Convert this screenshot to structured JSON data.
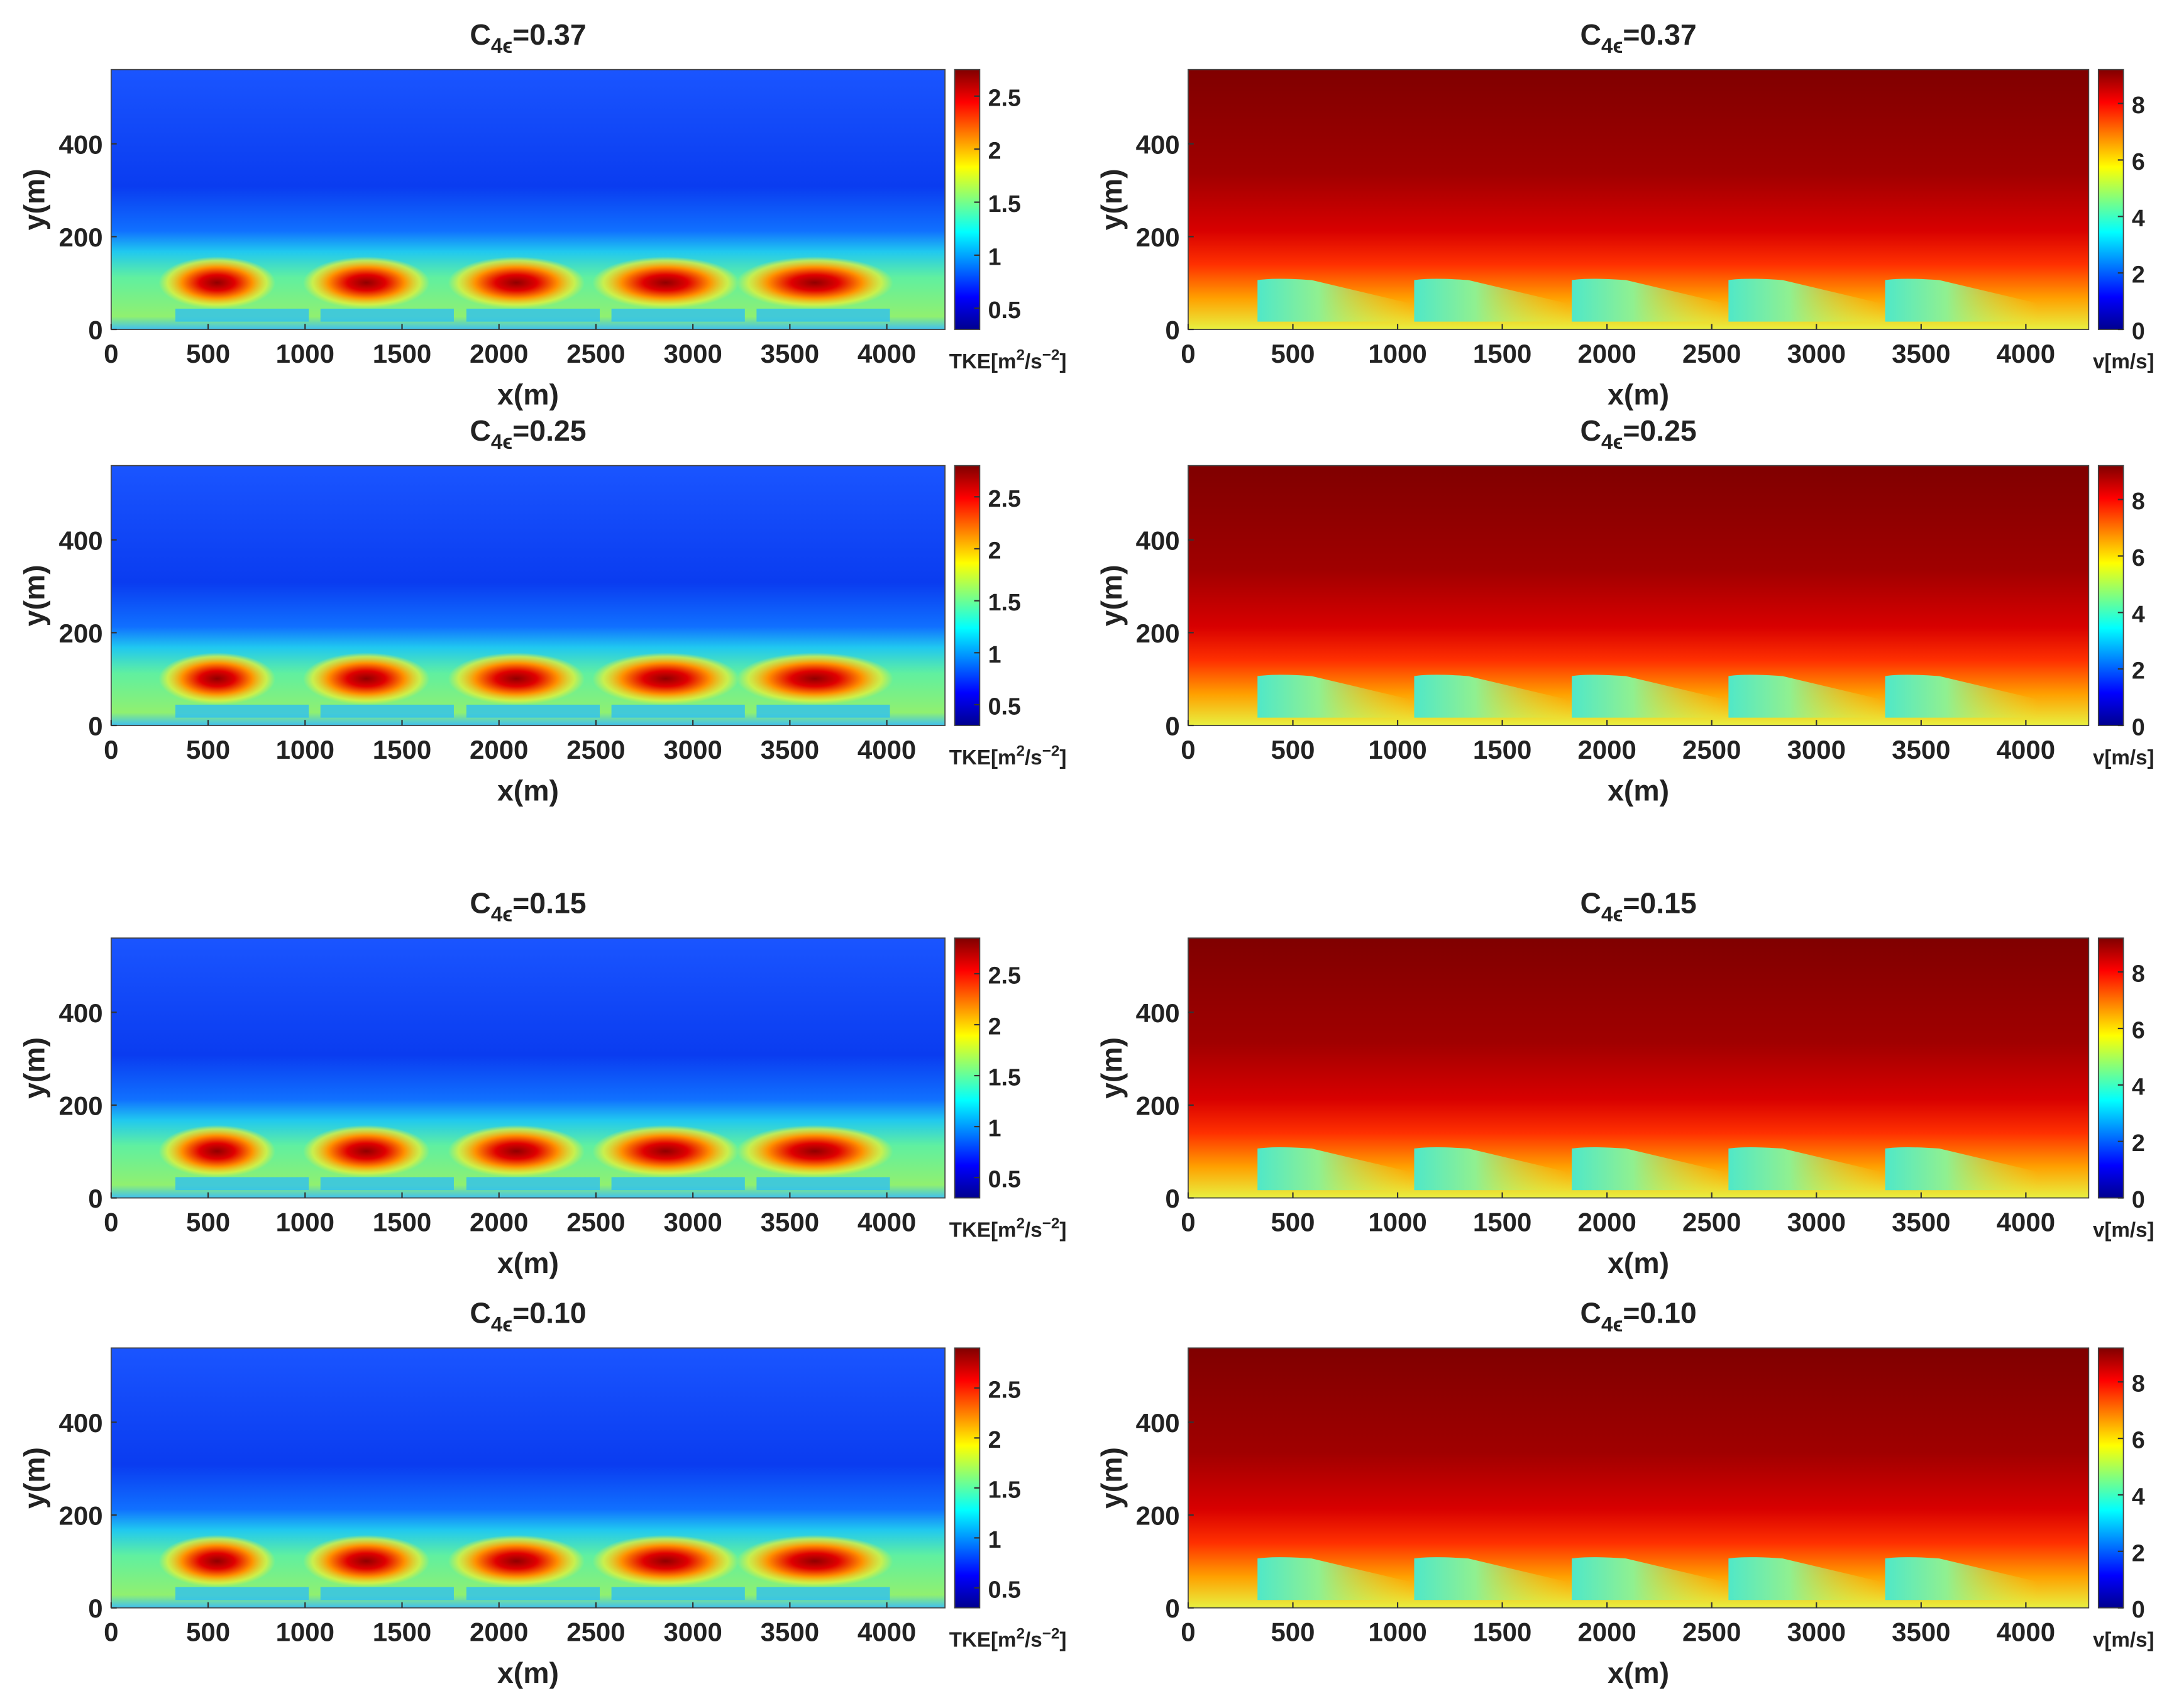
{
  "chart_data": [
    {
      "type": "heatmap",
      "title": [
        "C",
        "4ϵ",
        "=0.37"
      ],
      "xlabel": "x(m)",
      "ylabel": "y(m)",
      "xlim": [
        0,
        4300
      ],
      "xticks": [
        0,
        500,
        1000,
        1500,
        2000,
        2500,
        3000,
        3500,
        4000
      ],
      "ylim": [
        0,
        560
      ],
      "yticks": [
        0,
        200,
        400
      ],
      "colormap": "jet",
      "colorbar": {
        "label": [
          "TKE[m",
          "2",
          "/s",
          "−2",
          "]"
        ],
        "lim": [
          0.3,
          2.75
        ],
        "ticks": [
          0.5,
          1,
          1.5,
          2,
          2.5
        ]
      }
    },
    {
      "type": "heatmap",
      "title": [
        "C",
        "4ϵ",
        "=0.37"
      ],
      "xlabel": "x(m)",
      "ylabel": "y(m)",
      "xlim": [
        0,
        4300
      ],
      "xticks": [
        0,
        500,
        1000,
        1500,
        2000,
        2500,
        3000,
        3500,
        4000
      ],
      "ylim": [
        0,
        560
      ],
      "yticks": [
        0,
        200,
        400
      ],
      "colormap": "jet",
      "colorbar": {
        "label": [
          "v[m/s]"
        ],
        "lim": [
          0,
          9.2
        ],
        "ticks": [
          0,
          2,
          4,
          6,
          8
        ]
      }
    },
    {
      "type": "heatmap",
      "title": [
        "C",
        "4ϵ",
        "=0.25"
      ],
      "xlabel": "x(m)",
      "ylabel": "y(m)",
      "xlim": [
        0,
        4300
      ],
      "xticks": [
        0,
        500,
        1000,
        1500,
        2000,
        2500,
        3000,
        3500,
        4000
      ],
      "ylim": [
        0,
        560
      ],
      "yticks": [
        0,
        200,
        400
      ],
      "colormap": "jet",
      "colorbar": {
        "label": [
          "TKE[m",
          "2",
          "/s",
          "−2",
          "]"
        ],
        "lim": [
          0.3,
          2.8
        ],
        "ticks": [
          0.5,
          1,
          1.5,
          2,
          2.5
        ]
      }
    },
    {
      "type": "heatmap",
      "title": [
        "C",
        "4ϵ",
        "=0.25"
      ],
      "xlabel": "x(m)",
      "ylabel": "y(m)",
      "xlim": [
        0,
        4300
      ],
      "xticks": [
        0,
        500,
        1000,
        1500,
        2000,
        2500,
        3000,
        3500,
        4000
      ],
      "ylim": [
        0,
        560
      ],
      "yticks": [
        0,
        200,
        400
      ],
      "colormap": "jet",
      "colorbar": {
        "label": [
          "v[m/s]"
        ],
        "lim": [
          0,
          9.2
        ],
        "ticks": [
          0,
          2,
          4,
          6,
          8
        ]
      }
    },
    {
      "type": "heatmap",
      "title": [
        "C",
        "4ϵ",
        "=0.15"
      ],
      "xlabel": "x(m)",
      "ylabel": "y(m)",
      "xlim": [
        0,
        4300
      ],
      "xticks": [
        0,
        500,
        1000,
        1500,
        2000,
        2500,
        3000,
        3500,
        4000
      ],
      "ylim": [
        0,
        560
      ],
      "yticks": [
        0,
        200,
        400
      ],
      "colormap": "jet",
      "colorbar": {
        "label": [
          "TKE[m",
          "2",
          "/s",
          "−2",
          "]"
        ],
        "lim": [
          0.3,
          2.85
        ],
        "ticks": [
          0.5,
          1,
          1.5,
          2,
          2.5
        ]
      }
    },
    {
      "type": "heatmap",
      "title": [
        "C",
        "4ϵ",
        "=0.15"
      ],
      "xlabel": "x(m)",
      "ylabel": "y(m)",
      "xlim": [
        0,
        4300
      ],
      "xticks": [
        0,
        500,
        1000,
        1500,
        2000,
        2500,
        3000,
        3500,
        4000
      ],
      "ylim": [
        0,
        560
      ],
      "yticks": [
        0,
        200,
        400
      ],
      "colormap": "jet",
      "colorbar": {
        "label": [
          "v[m/s]"
        ],
        "lim": [
          0,
          9.2
        ],
        "ticks": [
          0,
          2,
          4,
          6,
          8
        ]
      }
    },
    {
      "type": "heatmap",
      "title": [
        "C",
        "4ϵ",
        "=0.10"
      ],
      "xlabel": "x(m)",
      "ylabel": "y(m)",
      "xlim": [
        0,
        4300
      ],
      "xticks": [
        0,
        500,
        1000,
        1500,
        2000,
        2500,
        3000,
        3500,
        4000
      ],
      "ylim": [
        0,
        560
      ],
      "yticks": [
        0,
        200,
        400
      ],
      "colormap": "jet",
      "colorbar": {
        "label": [
          "TKE[m",
          "2",
          "/s",
          "−2",
          "]"
        ],
        "lim": [
          0.3,
          2.9
        ],
        "ticks": [
          0.5,
          1,
          1.5,
          2,
          2.5
        ]
      }
    },
    {
      "type": "heatmap",
      "title": [
        "C",
        "4ϵ",
        "=0.10"
      ],
      "xlabel": "x(m)",
      "ylabel": "y(m)",
      "xlim": [
        0,
        4300
      ],
      "xticks": [
        0,
        500,
        1000,
        1500,
        2000,
        2500,
        3000,
        3500,
        4000
      ],
      "ylim": [
        0,
        560
      ],
      "yticks": [
        0,
        200,
        400
      ],
      "colormap": "jet",
      "colorbar": {
        "label": [
          "v[m/s]"
        ],
        "lim": [
          0,
          9.2
        ],
        "ticks": [
          0,
          2,
          4,
          6,
          8
        ]
      }
    }
  ]
}
